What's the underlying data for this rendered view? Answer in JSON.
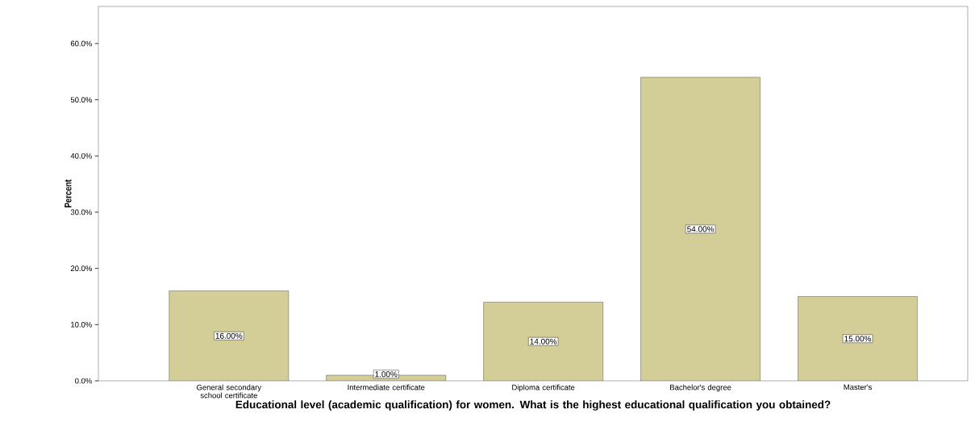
{
  "chart_data": {
    "type": "bar",
    "ylabel": "Percent",
    "xlabel": "Educational level (academic qualification) for women. What is the highest educational qualification you obtained?",
    "categories": [
      "General secondary school certificate",
      "Intermediate certificate",
      "Diploma certificate",
      "Bachelor's degree",
      "Master's"
    ],
    "values": [
      16,
      1,
      14,
      54,
      15
    ],
    "value_labels": [
      "16.00%",
      "1.00%",
      "14.00%",
      "54.00%",
      "15.00%"
    ],
    "color": "#d3cd97",
    "ylim": [
      0,
      66.6
    ],
    "yticks": [
      {
        "value": 0,
        "label": "0.0%"
      },
      {
        "value": 10,
        "label": "10.0%"
      },
      {
        "value": 20,
        "label": "20.0%"
      },
      {
        "value": 30,
        "label": "30.0%"
      },
      {
        "value": 40,
        "label": "40.0%"
      },
      {
        "value": 50,
        "label": "50.0%"
      },
      {
        "value": 60,
        "label": "60.0%"
      }
    ],
    "grid": false
  }
}
